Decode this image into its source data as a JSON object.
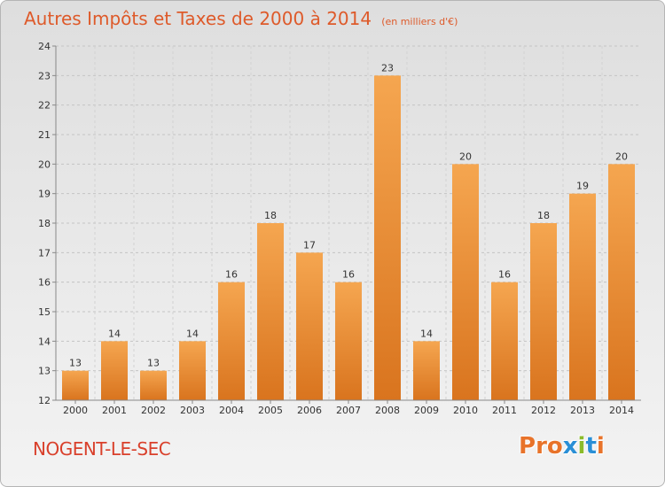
{
  "title": "Autres Impôts et Taxes de 2000 à 2014",
  "title_unit": "(en milliers d'€)",
  "commune": "NOGENT-LE-SEC",
  "brand": "Proxiti",
  "colors": {
    "title": "#de5a2a",
    "commune": "#d9402b",
    "bar_top": "#f5a650",
    "bar_bottom": "#d9741e",
    "brand_letters": [
      "#e8732a",
      "#e8732a",
      "#e8732a",
      "#2a8fd6",
      "#8bbb2a",
      "#2a8fd6",
      "#e8732a"
    ]
  },
  "chart_data": {
    "type": "bar",
    "categories": [
      "2000",
      "2001",
      "2002",
      "2003",
      "2004",
      "2005",
      "2006",
      "2007",
      "2008",
      "2009",
      "2010",
      "2011",
      "2012",
      "2013",
      "2014"
    ],
    "values": [
      13,
      14,
      13,
      14,
      16,
      18,
      17,
      16,
      23,
      14,
      20,
      16,
      18,
      19,
      20
    ],
    "data_labels": [
      "13",
      "14",
      "13",
      "14",
      "16",
      "18",
      "17",
      "16",
      "23",
      "14",
      "20",
      "16",
      "18",
      "19",
      "20"
    ],
    "ylim": [
      12,
      24
    ],
    "yticks": [
      12,
      13,
      14,
      15,
      16,
      17,
      18,
      19,
      20,
      21,
      22,
      23,
      24
    ],
    "grid": true,
    "title": "Autres Impôts et Taxes de 2000 à 2014",
    "xlabel": "",
    "ylabel": ""
  }
}
